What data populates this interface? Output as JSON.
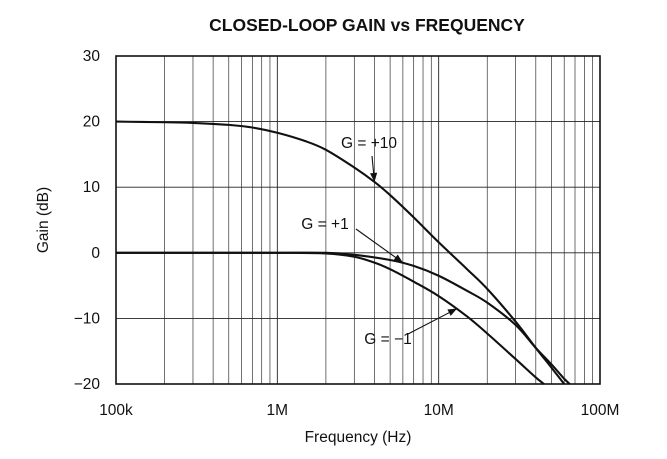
{
  "chart_data": {
    "type": "line",
    "title": "CLOSED-LOOP GAIN vs FREQUENCY",
    "xlabel": "Frequency (Hz)",
    "ylabel": "Gain (dB)",
    "x_scale": "log",
    "xlim": [
      100000,
      100000000
    ],
    "ylim": [
      -20,
      30
    ],
    "x_ticks": [
      100000,
      1000000,
      10000000,
      100000000
    ],
    "x_tick_labels": [
      "100k",
      "1M",
      "10M",
      "100M"
    ],
    "y_ticks": [
      30,
      20,
      10,
      0,
      -10,
      -20
    ],
    "y_tick_labels": [
      "30",
      "20",
      "10",
      "0",
      "−10",
      "−20"
    ],
    "grid": true,
    "series": [
      {
        "name": "G = +10",
        "x": [
          100000,
          200000,
          300000,
          500000,
          700000,
          1000000,
          1500000,
          2000000,
          3000000,
          4000000,
          5000000,
          7000000,
          10000000,
          15000000,
          20000000,
          30000000,
          40000000,
          50000000,
          60000000
        ],
        "y": [
          20,
          19.9,
          19.8,
          19.5,
          19.1,
          18.3,
          17,
          15.7,
          13,
          10.8,
          8.8,
          5.4,
          1.6,
          -2.5,
          -5.5,
          -10.5,
          -14.5,
          -17.5,
          -20
        ]
      },
      {
        "name": "G = +1",
        "x": [
          100000,
          300000,
          1000000,
          2000000,
          3000000,
          5000000,
          7000000,
          10000000,
          15000000,
          20000000,
          30000000,
          40000000,
          50000000,
          60000000,
          65000000
        ],
        "y": [
          0,
          0,
          0,
          0,
          -0.3,
          -1.1,
          -2,
          -3.5,
          -5.8,
          -7.6,
          -11,
          -14.5,
          -17,
          -19.2,
          -20
        ]
      },
      {
        "name": "G = −1",
        "x": [
          100000,
          300000,
          1000000,
          2000000,
          3000000,
          4000000,
          5000000,
          7000000,
          10000000,
          15000000,
          20000000,
          30000000,
          40000000,
          45000000
        ],
        "y": [
          0,
          0,
          0,
          -0.1,
          -0.6,
          -1.5,
          -2.5,
          -4.4,
          -6.6,
          -9.7,
          -12.3,
          -16.2,
          -19,
          -20
        ]
      }
    ],
    "annotations": [
      {
        "text": "G = +10",
        "series": "G = +10",
        "points_to": {
          "x": 4000000,
          "y": 10.8
        }
      },
      {
        "text": "G = +1",
        "series": "G = +1",
        "points_to": {
          "x": 6000000,
          "y": -1.5
        }
      },
      {
        "text": "G = −1",
        "series": "G = −1",
        "points_to": {
          "x": 13000000,
          "y": -8.5
        }
      }
    ]
  }
}
